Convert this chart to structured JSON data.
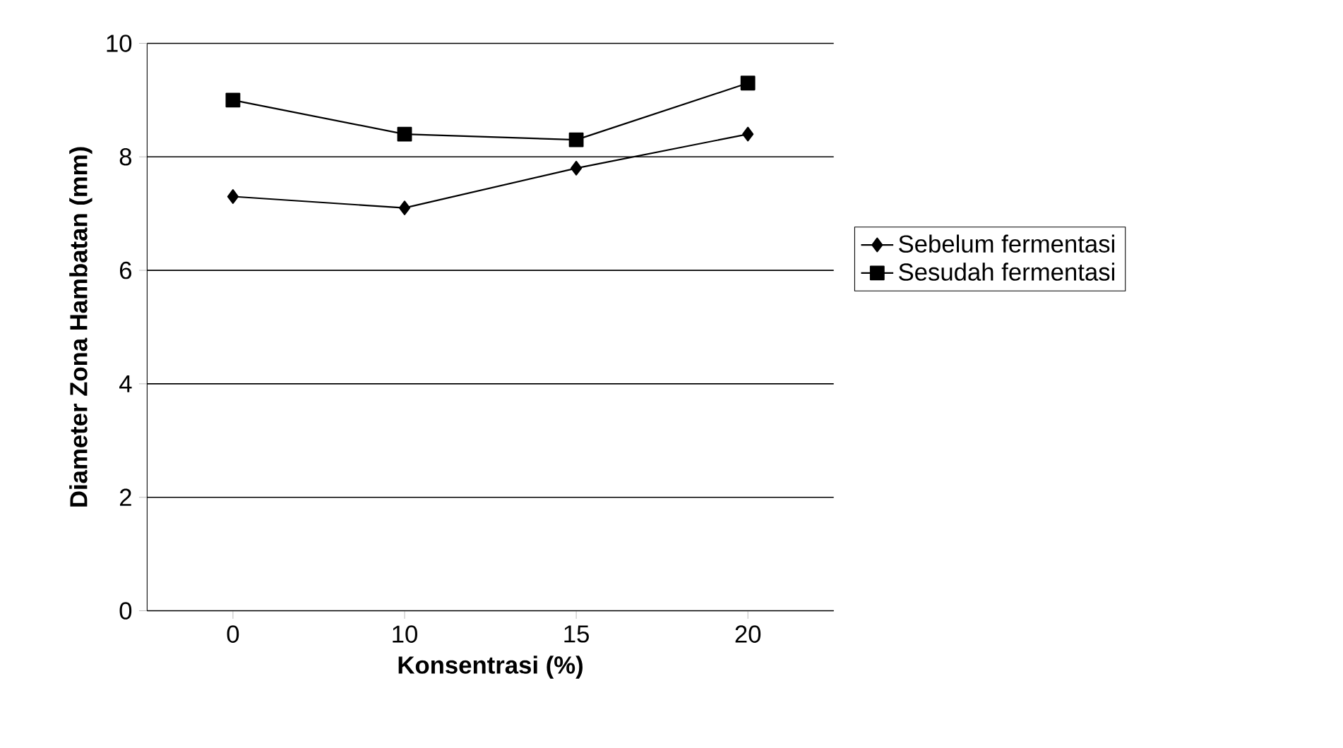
{
  "chart_data": {
    "type": "line",
    "xlabel": "Konsentrasi (%)",
    "ylabel": "Diameter Zona Hambatan (mm)",
    "categories": [
      "0",
      "10",
      "15",
      "20"
    ],
    "series": [
      {
        "name": "Sebelum fermentasi",
        "color": "#000000",
        "marker": "diamond",
        "values": [
          7.3,
          7.1,
          7.8,
          8.4
        ]
      },
      {
        "name": "Sesudah fermentasi",
        "color": "#000000",
        "marker": "square",
        "values": [
          9.0,
          8.4,
          8.3,
          9.3
        ]
      }
    ],
    "ylim": [
      0,
      10
    ],
    "yticks": [
      0,
      2,
      4,
      6,
      8,
      10
    ],
    "grid": "y",
    "legend": "right",
    "line_style": "solid"
  }
}
